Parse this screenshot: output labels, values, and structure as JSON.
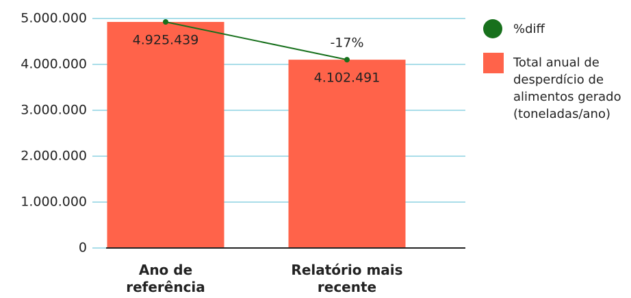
{
  "chart_data": {
    "type": "bar",
    "categories": [
      "Ano de referência",
      "Relatório mais recente"
    ],
    "series": [
      {
        "name": "%diff",
        "type": "line",
        "color": "#17701c",
        "values": [
          4925439,
          4102491
        ]
      },
      {
        "name": "Total anual de desperdício de alimentos gerado (toneladas/ano)",
        "type": "bar",
        "color": "#ff634a",
        "values": [
          4925439,
          4102491
        ],
        "value_labels": [
          "4.925.439",
          "4.102.491"
        ]
      }
    ],
    "annotations": [
      "-17%"
    ],
    "ylim": [
      0,
      5000000
    ],
    "yticks": [
      0,
      {
        "value": 1000000,
        "label": "1.000.000"
      },
      {
        "value": 2000000,
        "label": "2.000.000"
      },
      {
        "value": 3000000,
        "label": "3.000.000"
      },
      {
        "value": 4000000,
        "label": "4.000.000"
      },
      {
        "value": 5000000,
        "label": "5.000.000"
      }
    ],
    "grid": true
  }
}
